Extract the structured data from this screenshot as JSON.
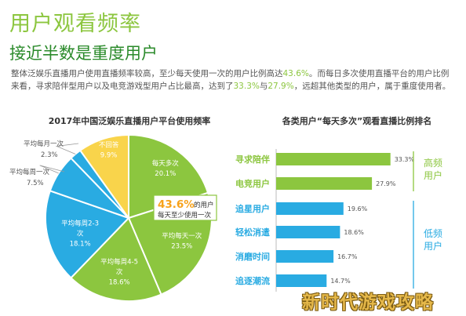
{
  "title": "用户观看频率",
  "subtitle": "接近半数是重度用户",
  "desc": {
    "p1": "整体泛娱乐直播用户使用直播频率较高，至少每天使用一次的用户比例高达",
    "v1": "43.6%",
    "p2": "。而每日多次使用直播平台的用户比例来看，寻求陪伴型用户以及电竞游戏型用户占比最高，达到了",
    "v2": "33.3%",
    "p3": "与",
    "v3": "27.9%",
    "p4": "，远超其他类型的用户，属于重度使用者。"
  },
  "colors": {
    "green_light": "#8cc63f",
    "green_dark": "#2a8a2a",
    "cyan": "#29abe2",
    "yellow": "#f9d44b",
    "bar_green": "#8cc63f",
    "bar_blue": "#29abe2"
  },
  "chart_data": [
    {
      "type": "pie",
      "title": "2017年中国泛娱乐直播用户平台使用频率",
      "slices": [
        {
          "name": "每天多次",
          "value": 20.1,
          "color": "#8cc63f",
          "label_lines": [
            "每天多次",
            "20.1%"
          ]
        },
        {
          "name": "平均每天一次",
          "value": 23.5,
          "color": "#8cc63f",
          "label_lines": [
            "平均每天一次",
            "23.5%"
          ]
        },
        {
          "name": "平均每周4-5次",
          "value": 18.6,
          "color": "#8cc63f",
          "label_lines": [
            "平均每周4-5",
            "次",
            "18.6%"
          ]
        },
        {
          "name": "平均每周2-3次",
          "value": 18.1,
          "color": "#29abe2",
          "label_lines": [
            "平均每周2-3",
            "次",
            "18.1%"
          ]
        },
        {
          "name": "平均每周一次",
          "value": 7.5,
          "color": "#29abe2",
          "label_lines": [
            "平均每周一次",
            "7.5%"
          ]
        },
        {
          "name": "平均每月一次",
          "value": 2.3,
          "color": "#29abe2",
          "label_lines": [
            "平均每月一次",
            "2.3%"
          ]
        },
        {
          "name": "不回答",
          "value": 9.9,
          "color": "#f9d44b",
          "label_lines": [
            "不回答",
            "9.9%"
          ]
        }
      ],
      "callout": {
        "value": "43.6%",
        "line1": "的用户",
        "line2": "每天至少使用一次"
      }
    },
    {
      "type": "bar",
      "orientation": "horizontal",
      "title": "各类用户“每天多次”观看直播比例排名",
      "categories": [
        "寻求陪伴",
        "电竞用户",
        "追星用户",
        "轻松消遣",
        "消磨时间",
        "追逐潮流"
      ],
      "values": [
        33.3,
        27.9,
        19.6,
        18.6,
        16.7,
        14.7
      ],
      "value_labels": [
        "33.3%",
        "27.9%",
        "19.6%",
        "18.6%",
        "16.7%",
        "14.7%"
      ],
      "xlim": [
        0,
        40
      ],
      "groups": [
        {
          "name": "高频用户",
          "lines": [
            "高频",
            "用户"
          ],
          "count": 2,
          "color": "#8cc63f"
        },
        {
          "name": "低频用户",
          "lines": [
            "低频",
            "用户"
          ],
          "count": 4,
          "color": "#29abe2"
        }
      ]
    }
  ],
  "watermark": "新时代游戏攻略"
}
